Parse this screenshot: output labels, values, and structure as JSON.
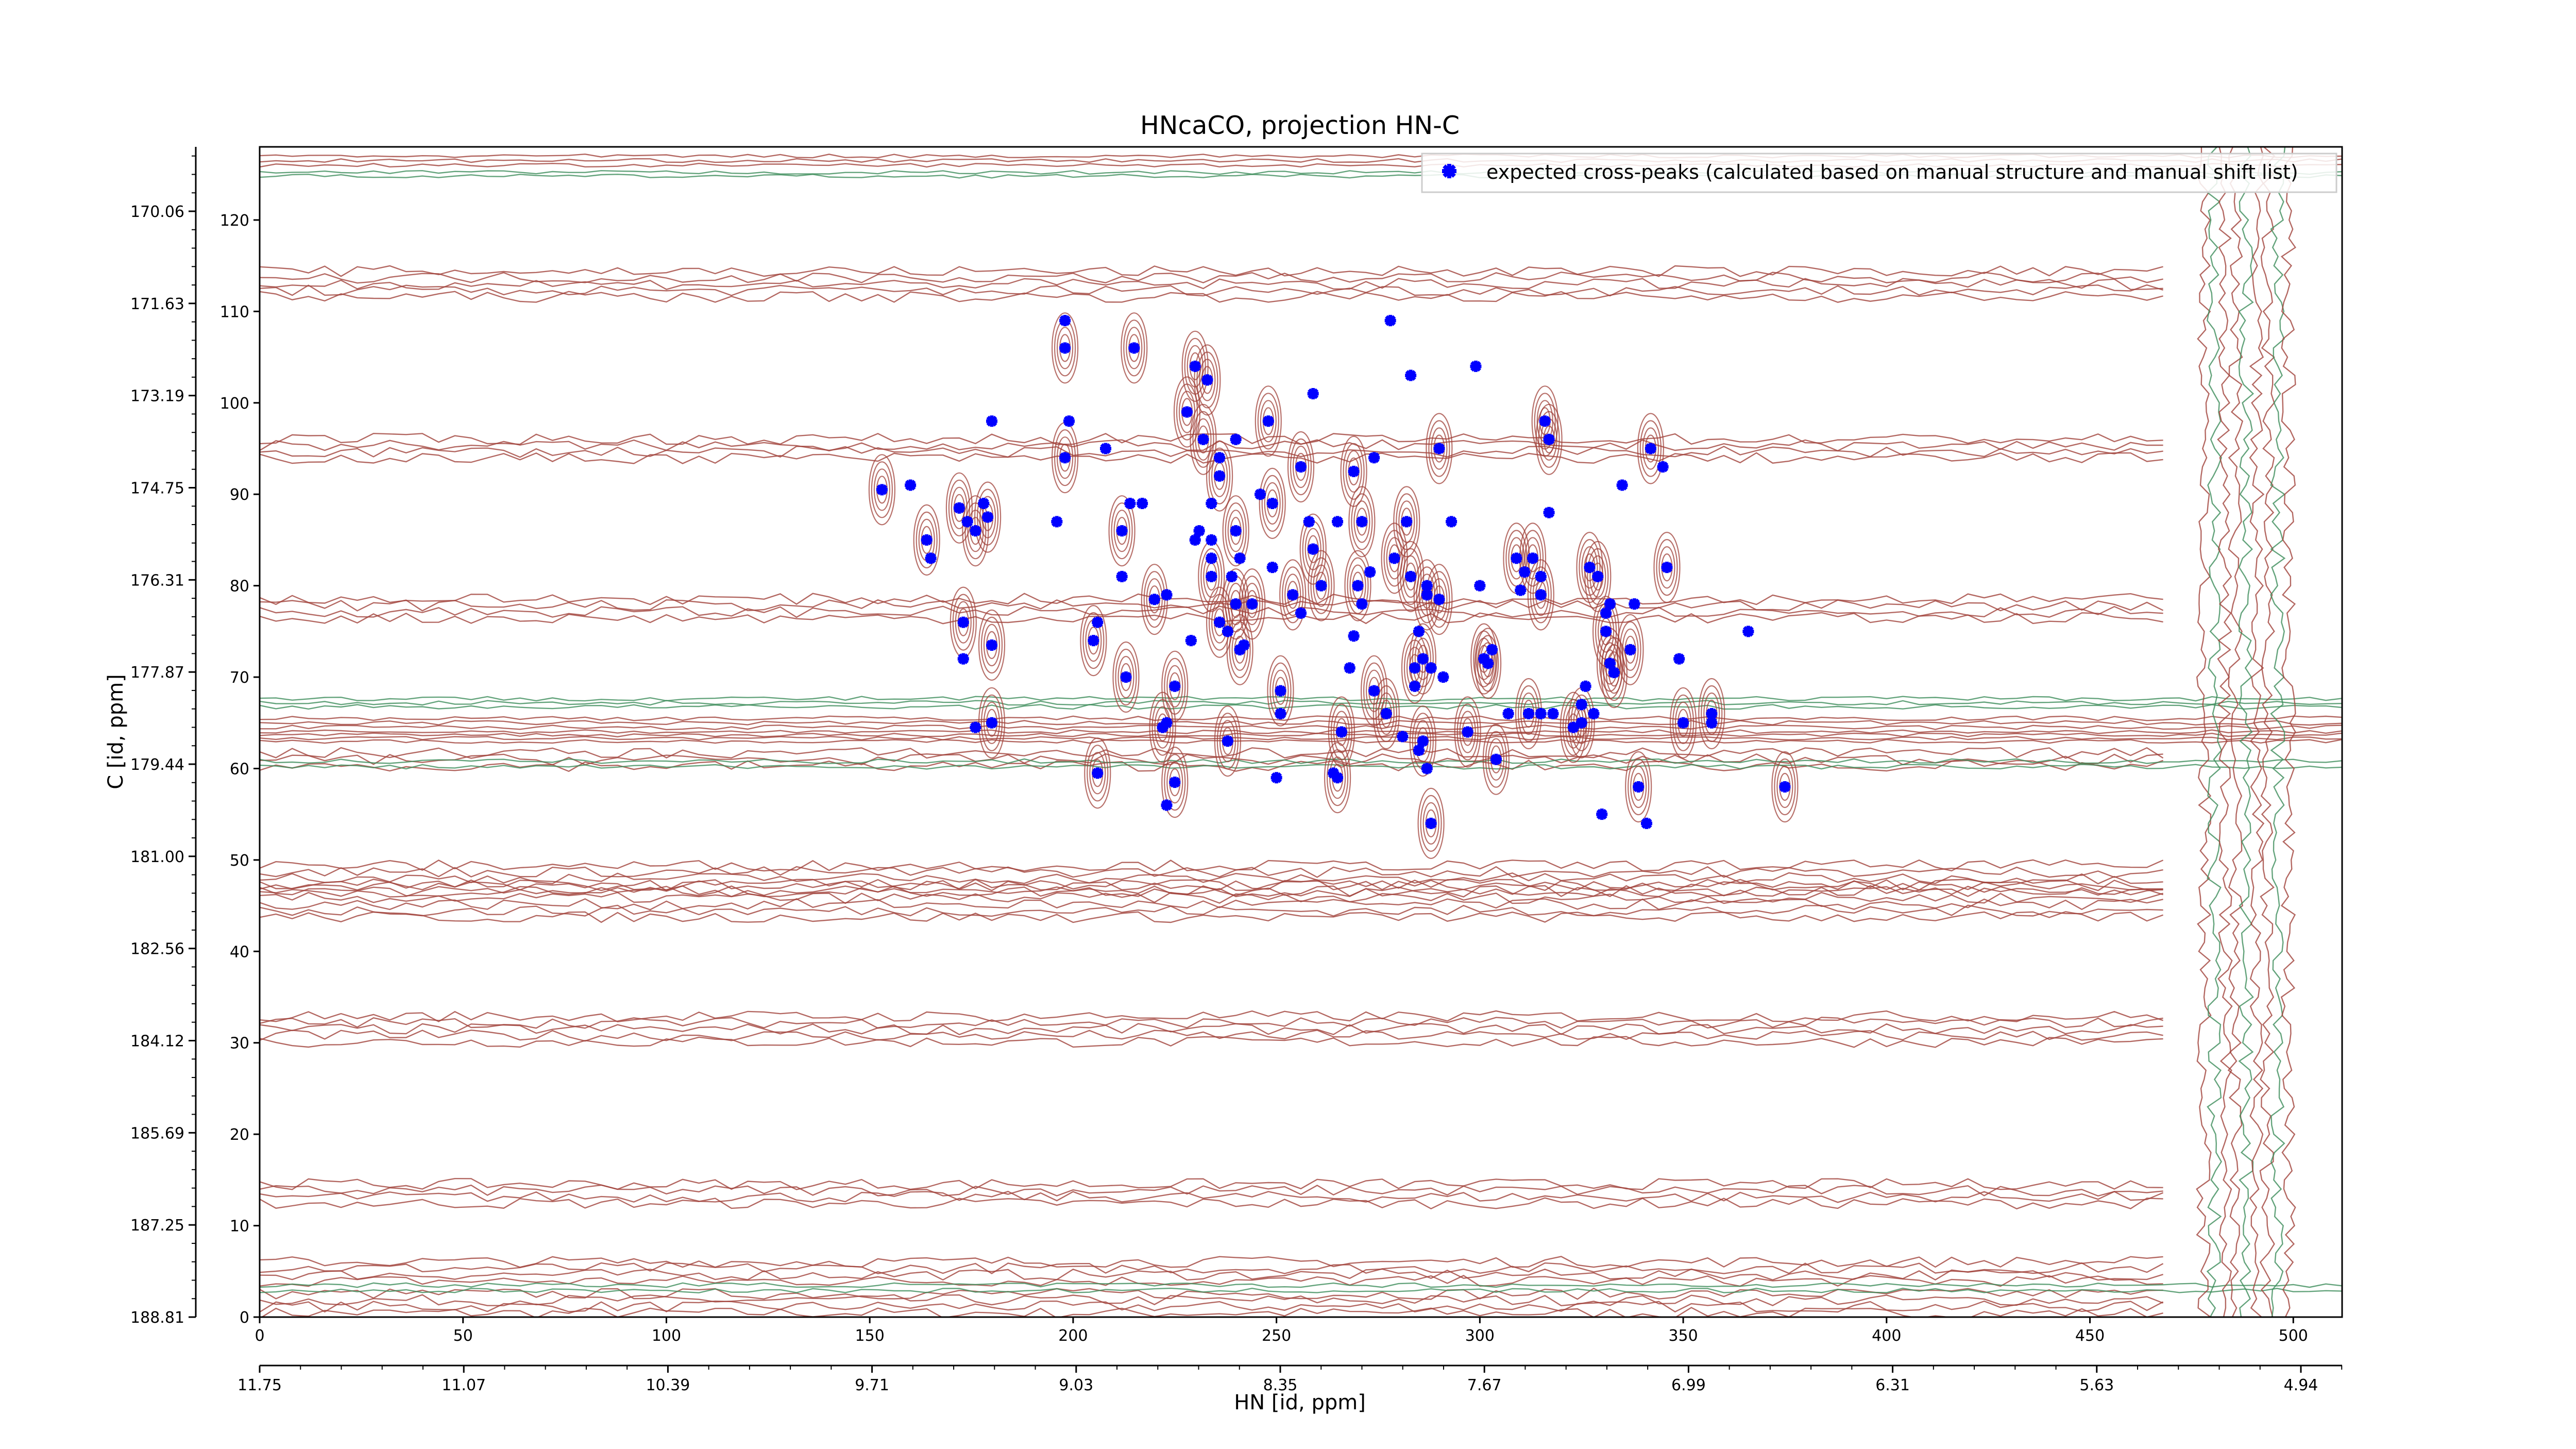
{
  "chart_data": {
    "type": "scatter",
    "title": "HNcaCO, projection HN-C",
    "xlabel": "HN [id, ppm]",
    "ylabel": "C [id, ppm]",
    "xlim": [
      0,
      512
    ],
    "ylim": [
      0,
      128
    ],
    "x_ticks": [
      "0",
      "50",
      "100",
      "150",
      "200",
      "250",
      "300",
      "350",
      "400",
      "450",
      "500"
    ],
    "y_ticks": [
      "0",
      "10",
      "20",
      "30",
      "40",
      "50",
      "60",
      "70",
      "80",
      "90",
      "100",
      "110",
      "120"
    ],
    "x_ppm_ticks": [
      "11.75",
      "11.07",
      "10.39",
      "9.71",
      "9.03",
      "8.35",
      "7.67",
      "6.99",
      "6.31",
      "5.63",
      "4.94"
    ],
    "y_ppm_ticks": [
      "188.81",
      "187.25",
      "185.69",
      "184.12",
      "182.56",
      "181.00",
      "179.44",
      "177.87",
      "176.31",
      "174.75",
      "173.19",
      "171.63",
      "170.06"
    ],
    "legend": {
      "label": "expected cross-peaks (calculated based on manual structure and manual shift list)",
      "placement": "top-right"
    },
    "colors": {
      "peaks": "#0000ff",
      "positive_contours": "#a0413a",
      "negative_contours": "#3c8c5a"
    },
    "series": [
      {
        "name": "expected cross-peaks (calculated based on manual structure and manual shift list)",
        "points": [
          [
            153,
            90.5
          ],
          [
            160,
            91
          ],
          [
            164,
            85
          ],
          [
            165,
            83
          ],
          [
            172,
            88.5
          ],
          [
            174,
            87
          ],
          [
            176,
            86
          ],
          [
            178,
            89
          ],
          [
            179,
            87.5
          ],
          [
            180,
            98
          ],
          [
            173,
            76
          ],
          [
            173,
            72
          ],
          [
            180,
            73.5
          ],
          [
            176,
            64.5
          ],
          [
            180,
            65
          ],
          [
            196,
            87
          ],
          [
            198,
            94
          ],
          [
            198,
            109
          ],
          [
            198,
            106
          ],
          [
            199,
            98
          ],
          [
            205,
            74
          ],
          [
            206,
            76
          ],
          [
            206,
            59.5
          ],
          [
            208,
            95
          ],
          [
            212,
            86
          ],
          [
            212,
            81
          ],
          [
            213,
            70
          ],
          [
            214,
            89
          ],
          [
            215,
            106
          ],
          [
            217,
            89
          ],
          [
            220,
            78.5
          ],
          [
            223,
            79
          ],
          [
            222,
            64.5
          ],
          [
            223,
            65
          ],
          [
            225,
            58.5
          ],
          [
            223,
            56
          ],
          [
            225,
            69
          ],
          [
            229,
            74
          ],
          [
            228,
            99
          ],
          [
            230,
            85
          ],
          [
            230,
            104
          ],
          [
            231,
            86
          ],
          [
            232,
            96
          ],
          [
            234,
            85
          ],
          [
            234,
            81
          ],
          [
            234,
            89
          ],
          [
            233,
            102.5
          ],
          [
            234,
            83
          ],
          [
            236,
            92
          ],
          [
            236,
            94
          ],
          [
            236,
            76
          ],
          [
            238,
            75
          ],
          [
            238,
            63
          ],
          [
            239,
            81
          ],
          [
            240,
            86
          ],
          [
            240,
            96
          ],
          [
            240,
            78
          ],
          [
            241,
            83
          ],
          [
            241,
            73
          ],
          [
            242,
            73.5
          ],
          [
            244,
            78
          ],
          [
            246,
            90
          ],
          [
            248,
            98
          ],
          [
            249,
            82
          ],
          [
            249,
            89
          ],
          [
            250,
            59
          ],
          [
            251,
            68.5
          ],
          [
            251,
            66
          ],
          [
            254,
            79
          ],
          [
            256,
            77
          ],
          [
            256,
            93
          ],
          [
            258,
            87
          ],
          [
            259,
            84
          ],
          [
            259,
            101
          ],
          [
            261,
            80
          ],
          [
            264,
            59.5
          ],
          [
            265,
            59
          ],
          [
            265,
            87
          ],
          [
            266,
            64
          ],
          [
            268,
            71
          ],
          [
            269,
            92.5
          ],
          [
            269,
            74.5
          ],
          [
            270,
            80
          ],
          [
            271,
            78
          ],
          [
            271,
            87
          ],
          [
            273,
            81.5
          ],
          [
            274,
            68.5
          ],
          [
            274,
            94
          ],
          [
            277,
            66
          ],
          [
            278,
            109
          ],
          [
            279,
            83
          ],
          [
            281,
            63.5
          ],
          [
            282,
            87
          ],
          [
            283,
            103
          ],
          [
            283,
            81
          ],
          [
            284,
            69
          ],
          [
            284,
            71
          ],
          [
            285,
            62
          ],
          [
            286,
            72
          ],
          [
            285,
            75
          ],
          [
            286,
            63
          ],
          [
            287,
            80
          ],
          [
            287,
            79
          ],
          [
            287,
            60
          ],
          [
            288,
            54
          ],
          [
            288,
            71
          ],
          [
            290,
            95
          ],
          [
            291,
            70
          ],
          [
            290,
            78.5
          ],
          [
            293,
            87
          ],
          [
            297,
            64
          ],
          [
            299,
            104
          ],
          [
            301,
            72
          ],
          [
            300,
            80
          ],
          [
            302,
            71.5
          ],
          [
            303,
            73
          ],
          [
            304,
            61
          ],
          [
            307,
            66
          ],
          [
            309,
            83
          ],
          [
            310,
            79.5
          ],
          [
            312,
            66
          ],
          [
            311,
            81.5
          ],
          [
            313,
            83
          ],
          [
            315,
            81
          ],
          [
            315,
            79
          ],
          [
            315,
            66
          ],
          [
            316,
            98
          ],
          [
            317,
            88
          ],
          [
            317,
            96
          ],
          [
            318,
            66
          ],
          [
            323,
            64.5
          ],
          [
            325,
            67
          ],
          [
            325,
            65
          ],
          [
            326,
            69
          ],
          [
            327,
            82
          ],
          [
            328,
            66
          ],
          [
            329,
            81
          ],
          [
            330,
            55
          ],
          [
            331,
            75
          ],
          [
            331,
            77
          ],
          [
            332,
            71.5
          ],
          [
            332,
            78
          ],
          [
            333,
            70.5
          ],
          [
            335,
            91
          ],
          [
            337,
            73
          ],
          [
            338,
            78
          ],
          [
            339,
            58
          ],
          [
            341,
            54
          ],
          [
            342,
            95
          ],
          [
            345,
            93
          ],
          [
            346,
            82
          ],
          [
            349,
            72
          ],
          [
            350,
            65
          ],
          [
            357,
            65
          ],
          [
            357,
            66
          ],
          [
            366,
            75
          ],
          [
            375,
            58
          ]
        ]
      }
    ]
  }
}
